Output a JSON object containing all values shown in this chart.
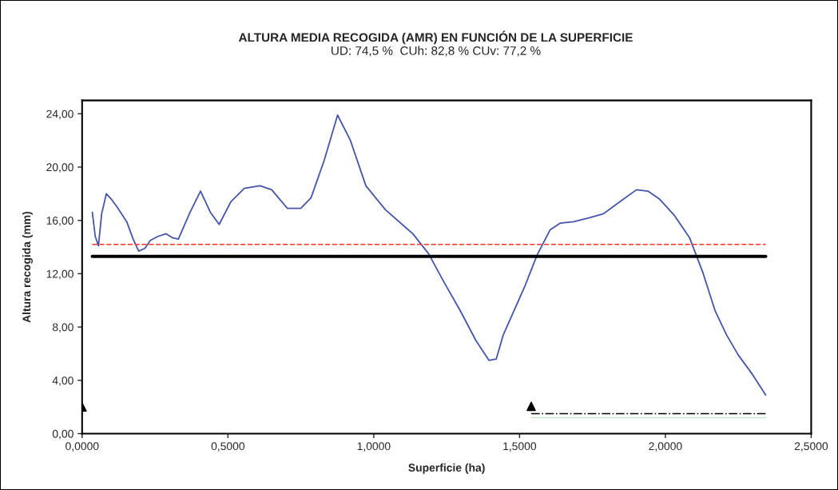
{
  "chart_data": {
    "type": "line",
    "title": "ALTURA MEDIA RECOGIDA (AMR) EN FUNCIÓN DE LA SUPERFICIE",
    "subtitle": "UD: 74,5 %  CUh: 82,8 % CUv: 77,2 %",
    "xlabel": "Superficie (ha)",
    "ylabel": "Altura recogida (mm)",
    "xlim": [
      0,
      2.5
    ],
    "ylim": [
      0,
      25
    ],
    "xticks": [
      {
        "value": 0,
        "label": "0,0000"
      },
      {
        "value": 0.5,
        "label": "0,5000"
      },
      {
        "value": 1.0,
        "label": "1,0000"
      },
      {
        "value": 1.5,
        "label": "1,5000"
      },
      {
        "value": 2.0,
        "label": "2,0000"
      },
      {
        "value": 2.5,
        "label": "2,5000"
      }
    ],
    "yticks": [
      {
        "value": 0,
        "label": "0,00"
      },
      {
        "value": 4,
        "label": "4,00"
      },
      {
        "value": 8,
        "label": "8,00"
      },
      {
        "value": 12,
        "label": "12,00"
      },
      {
        "value": 16,
        "label": "16,00"
      },
      {
        "value": 20,
        "label": "20,00"
      },
      {
        "value": 24,
        "label": "24,00"
      }
    ],
    "grid": false,
    "series": [
      {
        "color": "#4455aa",
        "line_style": "solid",
        "marker": "none",
        "x": [
          0.035,
          0.045,
          0.056,
          0.067,
          0.083,
          0.1,
          0.12,
          0.153,
          0.175,
          0.194,
          0.215,
          0.234,
          0.26,
          0.288,
          0.31,
          0.33,
          0.37,
          0.406,
          0.44,
          0.47,
          0.51,
          0.556,
          0.61,
          0.65,
          0.704,
          0.75,
          0.785,
          0.83,
          0.876,
          0.92,
          0.973,
          1.04,
          1.134,
          1.188,
          1.24,
          1.296,
          1.35,
          1.395,
          1.42,
          1.444,
          1.519,
          1.56,
          1.605,
          1.64,
          1.685,
          1.74,
          1.788,
          1.85,
          1.901,
          1.94,
          1.98,
          2.03,
          2.083,
          2.13,
          2.17,
          2.21,
          2.25,
          2.3,
          2.344
        ],
        "values": [
          16.6,
          14.8,
          14.1,
          16.5,
          18.0,
          17.6,
          17.0,
          15.9,
          14.6,
          13.7,
          13.9,
          14.5,
          14.8,
          15.0,
          14.7,
          14.6,
          16.6,
          18.2,
          16.6,
          15.7,
          17.4,
          18.4,
          18.6,
          18.3,
          16.9,
          16.9,
          17.7,
          20.5,
          23.9,
          22.0,
          18.6,
          16.8,
          15.0,
          13.5,
          11.4,
          9.25,
          7.0,
          5.5,
          5.6,
          7.4,
          11.1,
          13.4,
          15.3,
          15.8,
          15.9,
          16.2,
          16.5,
          17.5,
          18.3,
          18.2,
          17.6,
          16.4,
          14.7,
          12.0,
          9.25,
          7.4,
          5.9,
          4.4,
          2.9
        ]
      },
      {
        "color": "#ff3333",
        "line_style": "dashed",
        "marker": "none",
        "x": [
          0.035,
          2.344
        ],
        "values": [
          14.2,
          14.2
        ]
      },
      {
        "color": "#000000",
        "line_style": "solid",
        "marker": "none",
        "x": [
          0.035,
          2.344
        ],
        "values": [
          13.3,
          13.3
        ]
      },
      {
        "color": "#000000",
        "line_style": "dashdot",
        "marker": "none",
        "x": [
          1.54,
          2.344
        ],
        "values": [
          1.5,
          1.5
        ]
      },
      {
        "color": "#c8e6d0",
        "line_style": "solid",
        "marker": "none",
        "x": [
          1.54,
          2.344
        ],
        "values": [
          1.2,
          1.2
        ]
      },
      {
        "type": "scatter",
        "color": "#000000",
        "marker": "triangle",
        "x": [
          0.0,
          1.54
        ],
        "values": [
          2.0,
          2.05
        ]
      }
    ]
  }
}
